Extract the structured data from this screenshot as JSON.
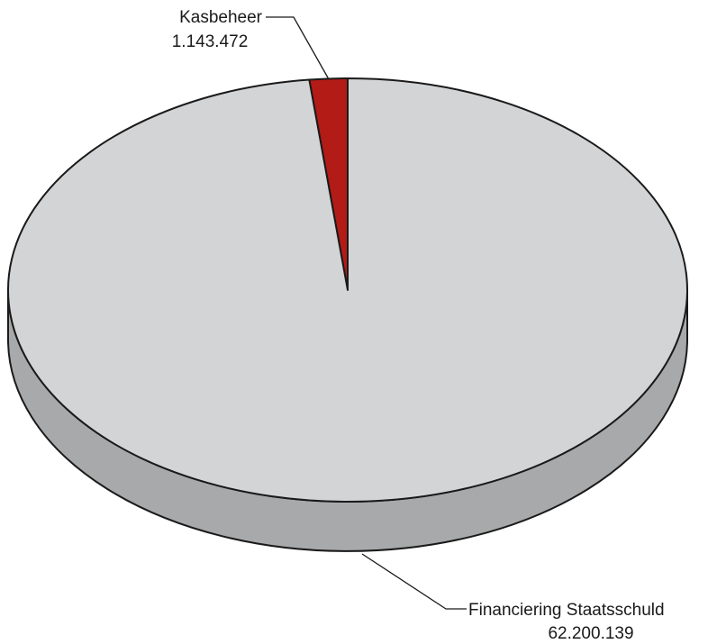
{
  "chart_data": {
    "type": "pie",
    "style": "3d",
    "slices": [
      {
        "label": "Kasbeheer",
        "value_label": "1.143.472",
        "value": 1143472,
        "color": "#b31b17"
      },
      {
        "label": "Financiering Staatsschuld",
        "value_label": "62.200.139",
        "value": 62200139,
        "color": "#d3d4d5"
      }
    ],
    "colors": {
      "side": "#a8a9aa",
      "outline": "#1a1a1a",
      "leader_line": "#1a1a1a"
    }
  }
}
